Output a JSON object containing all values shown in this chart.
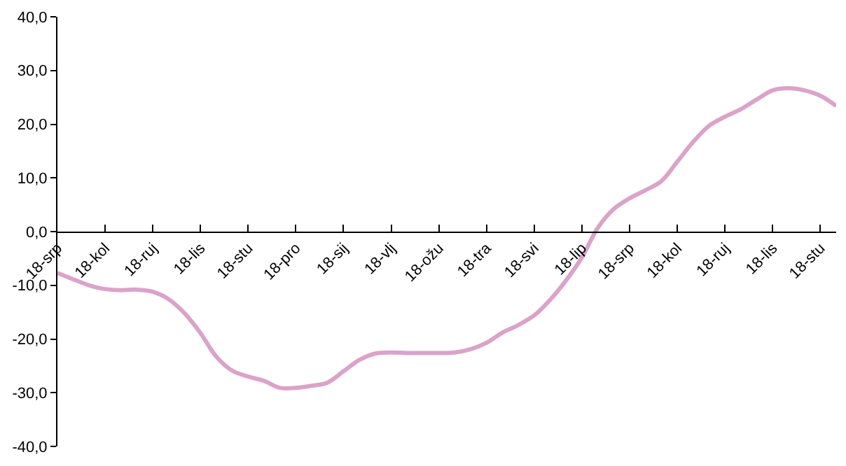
{
  "chart_data": {
    "type": "line",
    "marker": "none",
    "line_style": "solid",
    "categories": [
      "18-srp",
      null,
      null,
      "18-kol",
      null,
      null,
      "18-ruj",
      null,
      null,
      "18-lis",
      null,
      null,
      "18-stu",
      null,
      null,
      "18-pro",
      null,
      null,
      "18-sij",
      null,
      null,
      "18-vlj",
      null,
      null,
      "18-ožu",
      null,
      null,
      "18-tra",
      null,
      null,
      "18-svi",
      null,
      null,
      "18-lip",
      null,
      null,
      "18-srp",
      null,
      null,
      "18-kol",
      null,
      null,
      "18-ruj",
      null,
      null,
      "18-lis",
      null,
      null,
      "18-stu",
      null
    ],
    "ylim": [
      -40,
      40
    ],
    "yticks": [
      {
        "value": -40,
        "label": "-40,0"
      },
      {
        "value": -30,
        "label": "-30,0"
      },
      {
        "value": -20,
        "label": "-20,0"
      },
      {
        "value": -10,
        "label": "-10,0"
      },
      {
        "value": 0,
        "label": "0,0"
      },
      {
        "value": 10,
        "label": "10,0"
      },
      {
        "value": 20,
        "label": "20,0"
      },
      {
        "value": 30,
        "label": "30,0"
      },
      {
        "value": 40,
        "label": "40,0"
      }
    ],
    "series": [
      {
        "color": "#dba3c9",
        "values": [
          -7.7,
          -8.9,
          -10.0,
          -10.7,
          -10.9,
          -10.8,
          -11.2,
          -12.6,
          -15.2,
          -18.9,
          -23.3,
          -25.9,
          -27.0,
          -27.8,
          -29.1,
          -29.1,
          -28.7,
          -28.1,
          -26.0,
          -23.9,
          -22.7,
          -22.5,
          -22.6,
          -22.6,
          -22.6,
          -22.5,
          -21.9,
          -20.7,
          -18.8,
          -17.4,
          -15.6,
          -12.7,
          -9.1,
          -4.8,
          0.7,
          4.2,
          6.2,
          7.7,
          9.4,
          13.0,
          16.7,
          19.7,
          21.4,
          22.8,
          24.6,
          26.3,
          26.7,
          26.3,
          25.3,
          23.4
        ]
      }
    ]
  }
}
